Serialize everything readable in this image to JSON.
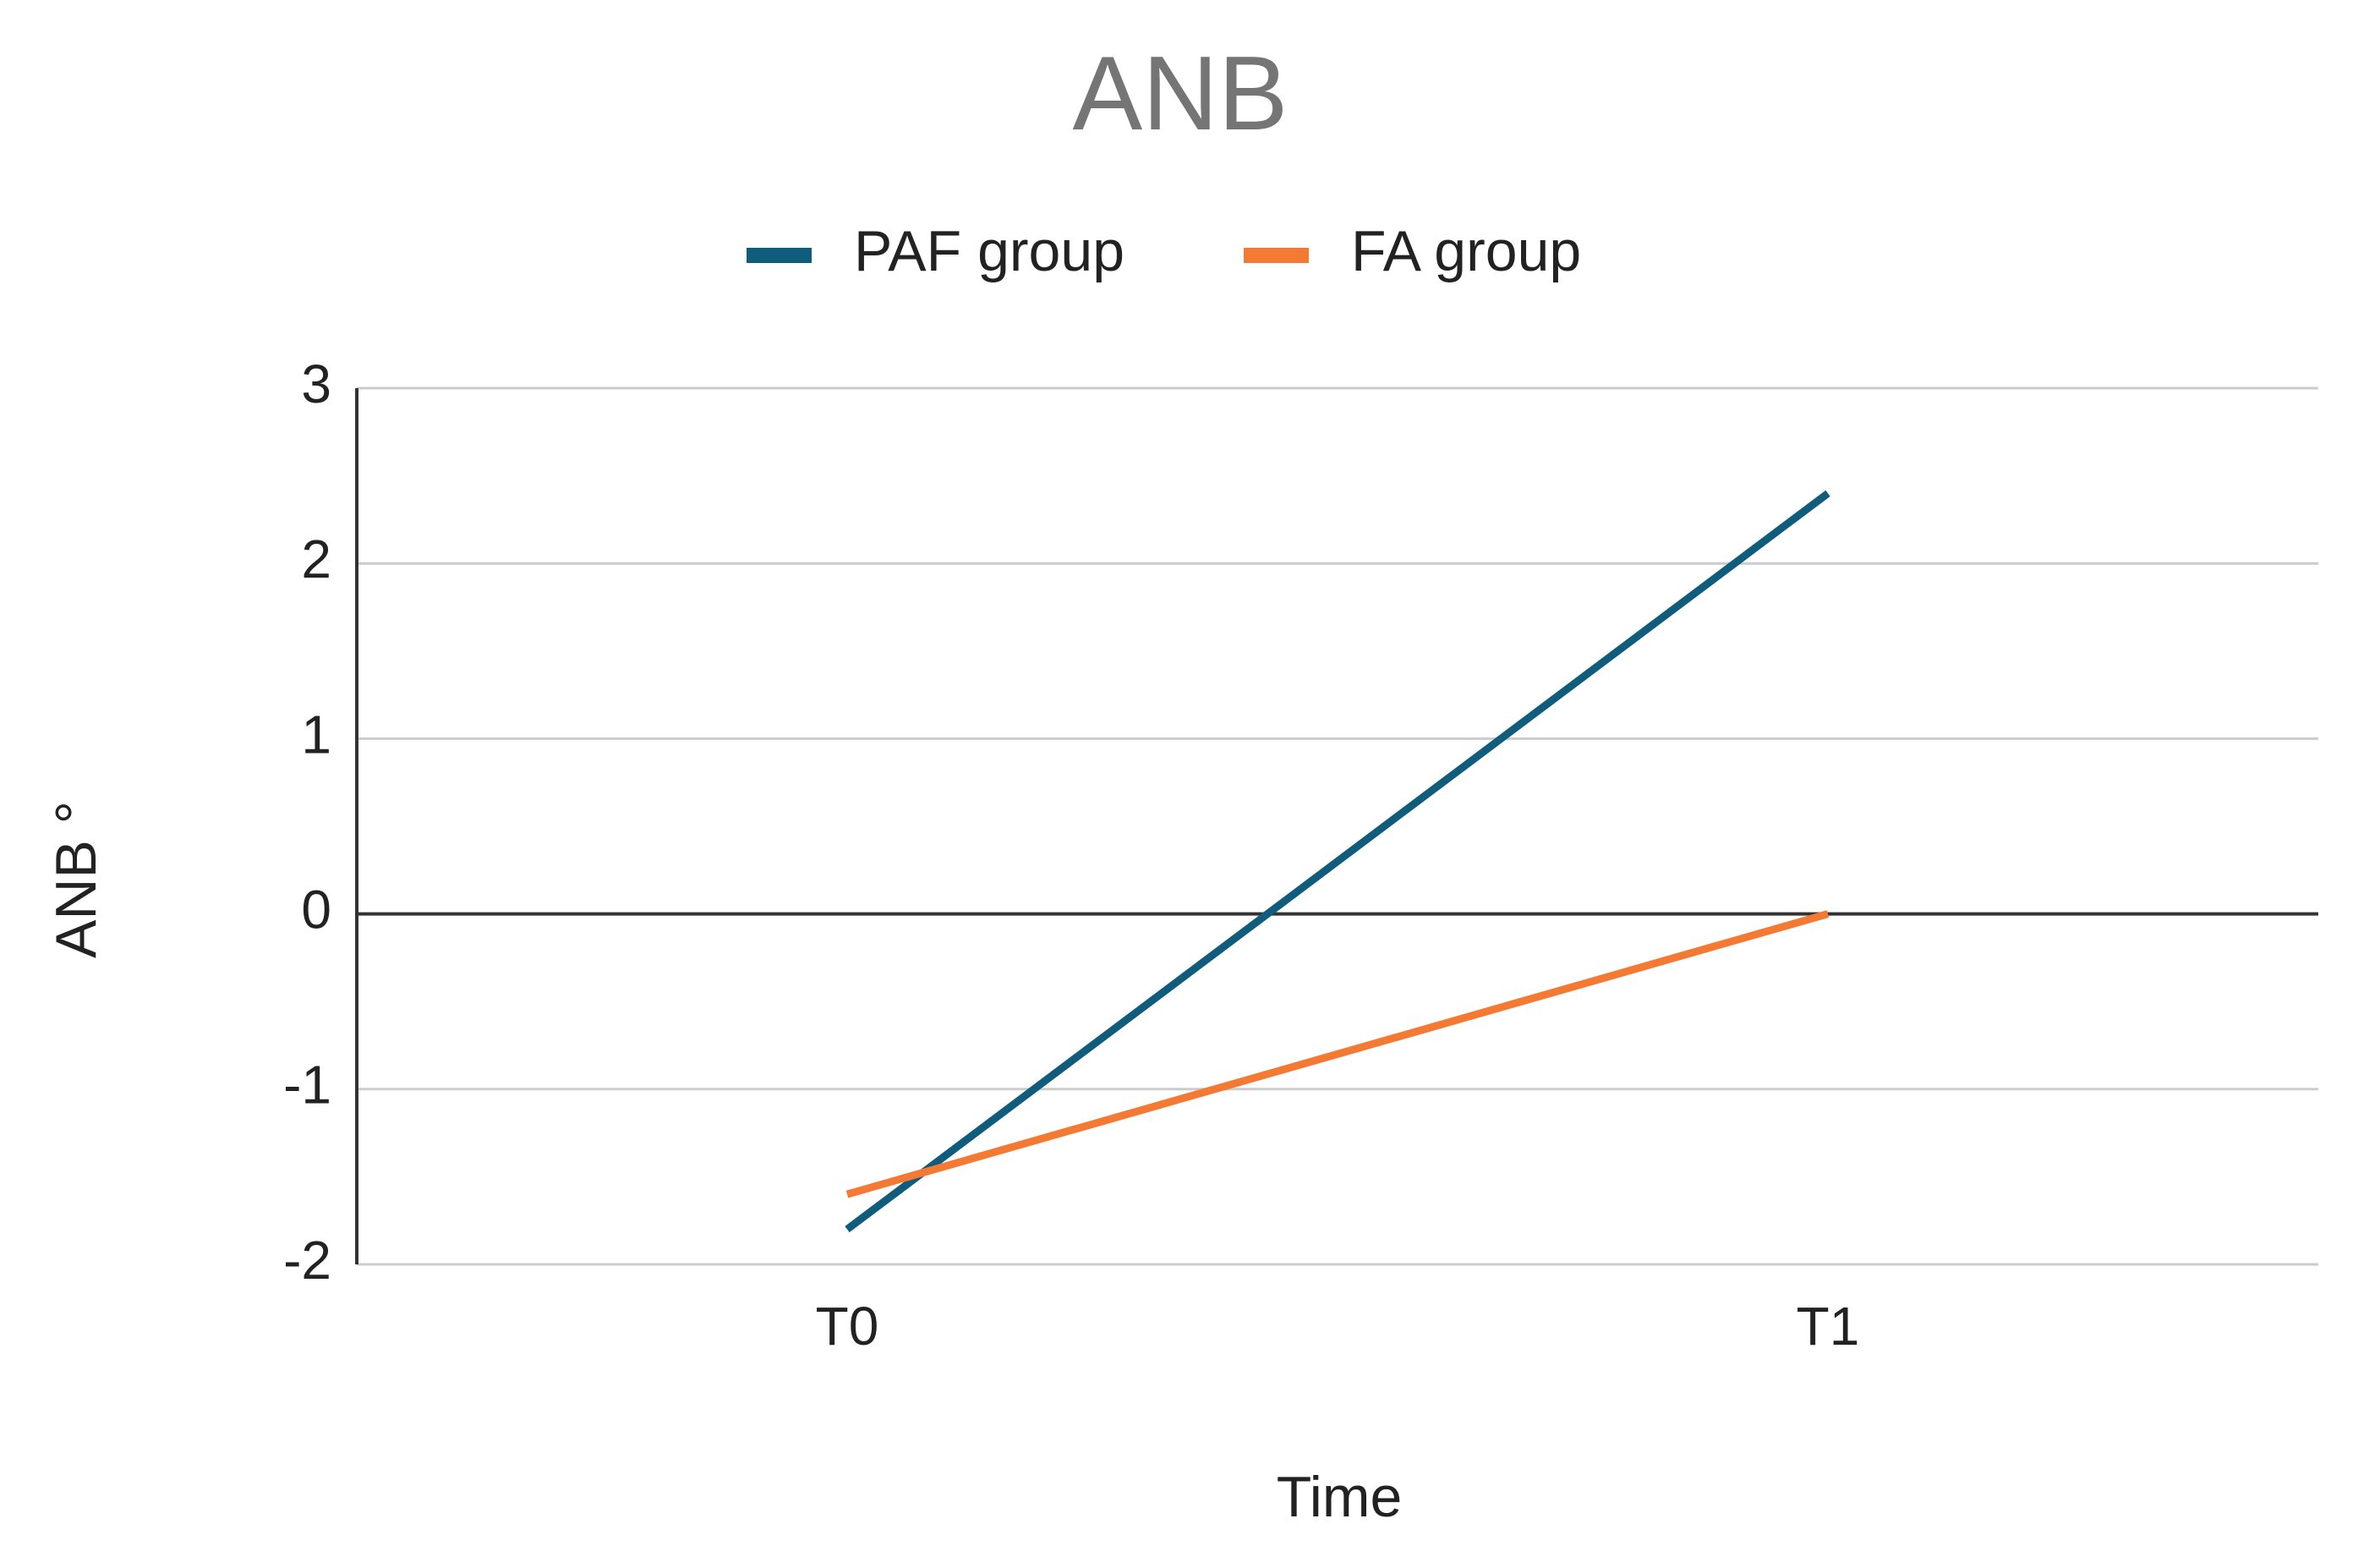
{
  "chart_data": {
    "type": "line",
    "title": "ANB",
    "x_label": "Time",
    "y_label": "ANB °",
    "categories": [
      "T0",
      "T1"
    ],
    "series": [
      {
        "name": "PAF group",
        "color": "#0f5c7c",
        "values": [
          -1.8,
          2.4
        ]
      },
      {
        "name": "FA group",
        "color": "#f47a33",
        "values": [
          -1.6,
          0.0
        ]
      }
    ],
    "ylim": [
      -2,
      3
    ],
    "yticks": [
      -2,
      -1,
      0,
      1,
      2,
      3
    ],
    "grid": true,
    "legend": "top"
  }
}
